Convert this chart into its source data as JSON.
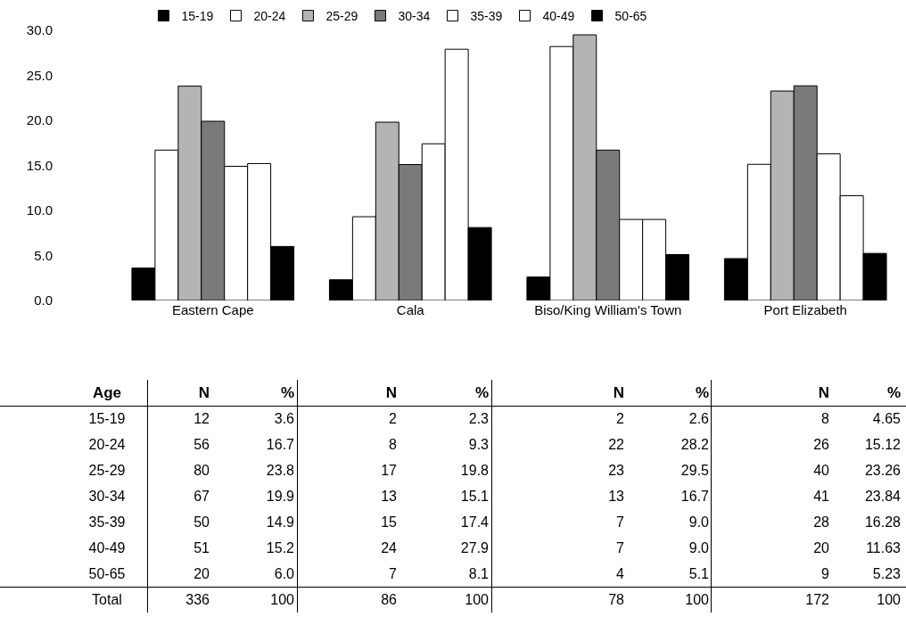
{
  "chart_data": [
    {
      "type": "bar",
      "categories": [
        "Eastern Cape",
        "Cala",
        "Biso/King William's Town",
        "Port Elizabeth"
      ],
      "series": [
        {
          "name": "15-19",
          "color": "#000000",
          "values": [
            3.6,
            2.3,
            2.6,
            4.65
          ]
        },
        {
          "name": "20-24",
          "color": "#ffffff",
          "values": [
            16.7,
            9.3,
            28.2,
            15.12
          ]
        },
        {
          "name": "25-29",
          "color": "#b4b4b4",
          "values": [
            23.8,
            19.8,
            29.5,
            23.26
          ]
        },
        {
          "name": "30-34",
          "color": "#7a7a7a",
          "values": [
            19.9,
            15.1,
            16.7,
            23.84
          ]
        },
        {
          "name": "35-39",
          "color": "#ffffff",
          "values": [
            14.9,
            17.4,
            9.0,
            16.28
          ]
        },
        {
          "name": "40-49",
          "color": "#ffffff",
          "values": [
            15.2,
            27.9,
            9.0,
            11.63
          ]
        },
        {
          "name": "50-65",
          "color": "#000000",
          "values": [
            6.0,
            8.1,
            5.1,
            5.23
          ]
        }
      ],
      "ylim": [
        0,
        30
      ],
      "yticks": [
        {
          "value": 0,
          "label": "0.0"
        },
        {
          "value": 5,
          "label": "5.0"
        },
        {
          "value": 10,
          "label": "10.0"
        },
        {
          "value": 15,
          "label": "15.0"
        },
        {
          "value": 20,
          "label": "20.0"
        },
        {
          "value": 25,
          "label": "25.0"
        },
        {
          "value": 30,
          "label": "30.0"
        }
      ],
      "grid": false,
      "legend": "top"
    },
    {
      "type": "other",
      "ylabel": "Age",
      "categories": [
        "N",
        "%",
        "N",
        "%",
        "N",
        "%",
        "N",
        "%"
      ],
      "y_categories": [
        "15-19",
        "20-24",
        "25-29",
        "30-34",
        "35-39",
        "40-49",
        "50-65",
        "Total"
      ],
      "cell_labels": [
        [
          "12",
          "3.6",
          "2",
          "2.3",
          "2",
          "2.6",
          "8",
          "4.65"
        ],
        [
          "56",
          "16.7",
          "8",
          "9.3",
          "22",
          "28.2",
          "26",
          "15.12"
        ],
        [
          "80",
          "23.8",
          "17",
          "19.8",
          "23",
          "29.5",
          "40",
          "23.26"
        ],
        [
          "67",
          "19.9",
          "13",
          "15.1",
          "13",
          "16.7",
          "41",
          "23.84"
        ],
        [
          "50",
          "14.9",
          "15",
          "17.4",
          "7",
          "9.0",
          "28",
          "16.28"
        ],
        [
          "51",
          "15.2",
          "24",
          "27.9",
          "7",
          "9.0",
          "20",
          "11.63"
        ],
        [
          "20",
          "6.0",
          "7",
          "8.1",
          "4",
          "5.1",
          "9",
          "5.23"
        ],
        [
          "336",
          "100",
          "86",
          "100",
          "78",
          "100",
          "172",
          "100"
        ]
      ]
    }
  ]
}
